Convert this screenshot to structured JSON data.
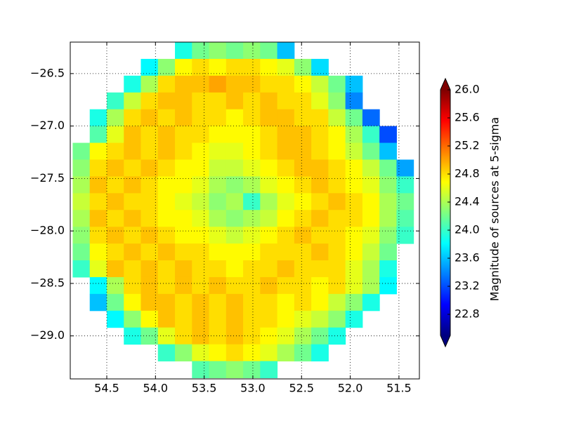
{
  "chart_data": {
    "type": "heatmap",
    "colormap": "jet",
    "grid": true,
    "colorbar_label": "Magnitude of sources at 5-sigma",
    "xlim": [
      54.875,
      51.29
    ],
    "ylim": [
      -29.41,
      -26.2
    ],
    "clim": [
      22.5,
      26.0
    ],
    "xticks": [
      54.5,
      {
        "value": 54.0,
        "label": "54.0"
      },
      53.5,
      {
        "value": 53.0,
        "label": "53.0"
      },
      52.5,
      {
        "value": 52.0,
        "label": "52.0"
      },
      51.5
    ],
    "yticks": [
      {
        "value": -26.5,
        "label": "−26.5"
      },
      {
        "value": -27.0,
        "label": "−27.0"
      },
      {
        "value": -27.5,
        "label": "−27.5"
      },
      {
        "value": -28.0,
        "label": "−28.0"
      },
      {
        "value": -28.5,
        "label": "−28.5"
      },
      {
        "value": -29.0,
        "label": "−29.0"
      }
    ],
    "cticks": [
      22.8,
      23.2,
      23.6,
      {
        "value": 24.0,
        "label": "24.0"
      },
      24.4,
      24.8,
      25.2,
      25.6,
      {
        "value": 26.0,
        "label": "26.0"
      }
    ],
    "x_edges": [
      54.85,
      54.675,
      54.5,
      54.325,
      54.15,
      53.975,
      53.8,
      53.625,
      53.45,
      53.275,
      53.1,
      52.925,
      52.75,
      52.575,
      52.4,
      52.225,
      52.05,
      51.875,
      51.7,
      51.525,
      51.35
    ],
    "y_edges": [
      -26.2,
      -26.36,
      -26.52,
      -26.68,
      -26.84,
      -27.0,
      -27.16,
      -27.32,
      -27.48,
      -27.64,
      -27.8,
      -27.96,
      -28.12,
      -28.28,
      -28.44,
      -28.6,
      -28.76,
      -28.92,
      -29.08,
      -29.24,
      -29.4
    ],
    "z": [
      [
        null,
        null,
        null,
        null,
        null,
        null,
        23.9,
        24.2,
        24.3,
        24.2,
        24.3,
        24.2,
        23.6,
        null,
        null,
        null,
        null,
        null,
        null,
        null
      ],
      [
        null,
        null,
        null,
        null,
        23.8,
        24.3,
        24.7,
        24.8,
        24.7,
        24.8,
        24.8,
        24.7,
        24.6,
        24.3,
        23.7,
        null,
        null,
        null,
        null,
        null
      ],
      [
        null,
        null,
        null,
        23.9,
        24.4,
        24.8,
        24.9,
        24.9,
        25.0,
        24.9,
        24.9,
        24.8,
        24.8,
        24.7,
        24.5,
        24.2,
        23.6,
        null,
        null,
        null
      ],
      [
        null,
        null,
        24.0,
        24.5,
        24.8,
        24.9,
        24.9,
        24.8,
        24.8,
        24.9,
        24.8,
        24.9,
        24.8,
        24.8,
        24.6,
        24.3,
        23.4,
        null,
        null,
        null
      ],
      [
        null,
        23.9,
        24.4,
        24.8,
        24.9,
        24.8,
        24.9,
        24.8,
        24.8,
        24.7,
        24.8,
        24.9,
        24.9,
        24.8,
        24.8,
        24.5,
        24.2,
        23.3,
        null,
        null
      ],
      [
        null,
        24.1,
        24.6,
        24.9,
        24.8,
        24.9,
        24.8,
        24.8,
        24.7,
        24.7,
        24.7,
        24.8,
        24.9,
        24.9,
        24.8,
        24.7,
        24.4,
        24.0,
        23.2,
        null
      ],
      [
        24.2,
        24.7,
        24.8,
        24.9,
        24.8,
        24.9,
        24.8,
        24.7,
        24.6,
        24.6,
        24.7,
        24.8,
        24.9,
        24.9,
        24.8,
        24.7,
        24.5,
        24.2,
        23.6,
        null
      ],
      [
        24.3,
        24.8,
        24.9,
        24.8,
        24.9,
        24.8,
        24.7,
        24.7,
        24.5,
        24.5,
        24.6,
        24.7,
        24.8,
        24.9,
        24.9,
        24.8,
        24.7,
        24.5,
        24.2,
        23.5
      ],
      [
        24.4,
        24.9,
        24.8,
        24.9,
        24.8,
        24.7,
        24.7,
        24.6,
        24.4,
        24.3,
        24.4,
        24.6,
        24.7,
        24.8,
        24.9,
        24.8,
        24.7,
        24.6,
        24.3,
        24.0
      ],
      [
        24.5,
        24.8,
        24.9,
        24.8,
        24.8,
        24.7,
        24.6,
        24.5,
        24.3,
        24.4,
        24.0,
        24.4,
        24.6,
        24.7,
        24.8,
        24.9,
        24.8,
        24.7,
        24.4,
        24.2
      ],
      [
        24.4,
        24.9,
        24.8,
        24.9,
        24.8,
        24.7,
        24.7,
        24.6,
        24.4,
        24.3,
        24.4,
        24.5,
        24.7,
        24.8,
        24.9,
        24.8,
        24.8,
        24.7,
        24.4,
        24.1
      ],
      [
        24.3,
        24.8,
        24.9,
        24.8,
        24.9,
        24.8,
        24.7,
        24.7,
        24.6,
        24.5,
        24.6,
        24.7,
        24.8,
        24.9,
        24.8,
        24.8,
        24.7,
        24.6,
        24.3,
        24.0
      ],
      [
        24.2,
        24.7,
        24.8,
        24.9,
        24.8,
        24.9,
        24.8,
        24.8,
        24.7,
        24.7,
        24.7,
        24.8,
        24.8,
        24.8,
        24.9,
        24.8,
        24.7,
        24.5,
        24.2,
        null
      ],
      [
        24.0,
        24.6,
        24.9,
        24.8,
        24.9,
        24.8,
        24.9,
        24.8,
        24.8,
        24.7,
        24.8,
        24.8,
        24.9,
        24.8,
        24.8,
        24.8,
        24.6,
        24.4,
        23.9,
        null
      ],
      [
        null,
        23.8,
        24.4,
        24.8,
        24.9,
        24.8,
        24.9,
        24.8,
        24.9,
        24.8,
        24.8,
        24.9,
        24.8,
        24.8,
        24.7,
        24.8,
        24.6,
        24.4,
        23.8,
        null
      ],
      [
        null,
        23.6,
        24.2,
        24.7,
        24.9,
        24.9,
        24.8,
        24.9,
        24.8,
        24.9,
        24.8,
        24.8,
        24.7,
        24.8,
        24.7,
        24.5,
        24.3,
        23.9,
        null,
        null
      ],
      [
        null,
        null,
        23.8,
        24.3,
        24.7,
        24.9,
        24.8,
        24.9,
        24.8,
        24.9,
        24.8,
        24.8,
        24.7,
        24.6,
        24.5,
        24.3,
        23.9,
        null,
        null,
        null
      ],
      [
        null,
        null,
        null,
        23.9,
        24.2,
        24.6,
        24.8,
        24.9,
        24.8,
        24.9,
        24.8,
        24.7,
        24.6,
        24.4,
        24.2,
        23.9,
        null,
        null,
        null,
        null
      ],
      [
        null,
        null,
        null,
        null,
        null,
        24.0,
        24.3,
        24.6,
        24.7,
        24.8,
        24.7,
        24.6,
        24.4,
        24.2,
        23.9,
        null,
        null,
        null,
        null,
        null
      ],
      [
        null,
        null,
        null,
        null,
        null,
        null,
        null,
        24.1,
        24.2,
        24.3,
        24.2,
        24.0,
        null,
        null,
        null,
        null,
        null,
        null,
        null,
        null
      ]
    ]
  }
}
